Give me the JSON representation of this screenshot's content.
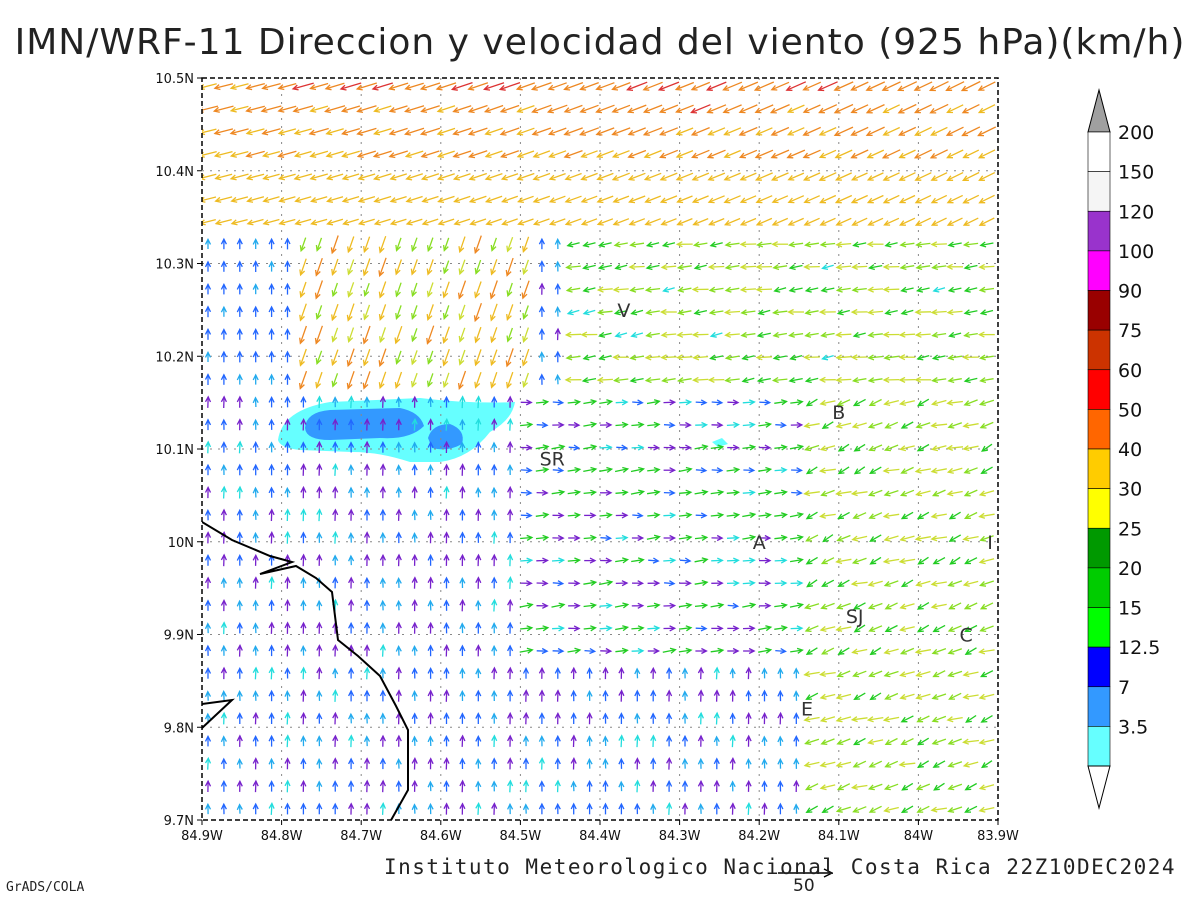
{
  "title": "IMN/WRF-11 Direccion y velocidad del viento (925 hPa)(km/h)",
  "footer": "Instituto Meteorologico Nacional Costa Rica 22Z10DEC2024",
  "credit": "GrADS/COLA",
  "ref_vector_label": "50",
  "axes": {
    "x_ticks": [
      "84.9W",
      "84.8W",
      "84.7W",
      "84.6W",
      "84.5W",
      "84.4W",
      "84.3W",
      "84.2W",
      "84.1W",
      "84W",
      "83.9W"
    ],
    "y_ticks": [
      "10.5N",
      "10.4N",
      "10.3N",
      "10.2N",
      "10.1N",
      "10N",
      "9.9N",
      "9.8N",
      "9.7N"
    ],
    "lon_range": [
      -84.9,
      -83.9
    ],
    "lat_range": [
      9.7,
      10.5
    ]
  },
  "cities": [
    {
      "label": "V",
      "lon": -84.37,
      "lat": 10.25
    },
    {
      "label": "B",
      "lon": -84.1,
      "lat": 10.14
    },
    {
      "label": "SR",
      "lon": -84.46,
      "lat": 10.09
    },
    {
      "label": "A",
      "lon": -84.2,
      "lat": 10.0
    },
    {
      "label": "I",
      "lon": -83.91,
      "lat": 10.0
    },
    {
      "label": "SJ",
      "lon": -84.08,
      "lat": 9.92
    },
    {
      "label": "C",
      "lon": -83.94,
      "lat": 9.9
    },
    {
      "label": "E",
      "lon": -84.14,
      "lat": 9.82
    }
  ],
  "colorbar": {
    "labels": [
      "200",
      "150",
      "120",
      "100",
      "90",
      "75",
      "60",
      "50",
      "40",
      "30",
      "25",
      "20",
      "15",
      "12.5",
      "7",
      "3.5"
    ],
    "colors": [
      "#ffffff",
      "#f5f5f5",
      "#9933cc",
      "#ff00ff",
      "#990000",
      "#cc3300",
      "#ff0000",
      "#ff6600",
      "#ffcc00",
      "#ffff00",
      "#009900",
      "#00cc00",
      "#00ff00",
      "#0000ff",
      "#3399ff",
      "#66ffff"
    ],
    "over_color": "#a0a0a0"
  },
  "colors": {
    "grid": "#888888",
    "coast": "#000000",
    "shade_light": "#66ffff",
    "shade_mid": "#3399ff"
  }
}
